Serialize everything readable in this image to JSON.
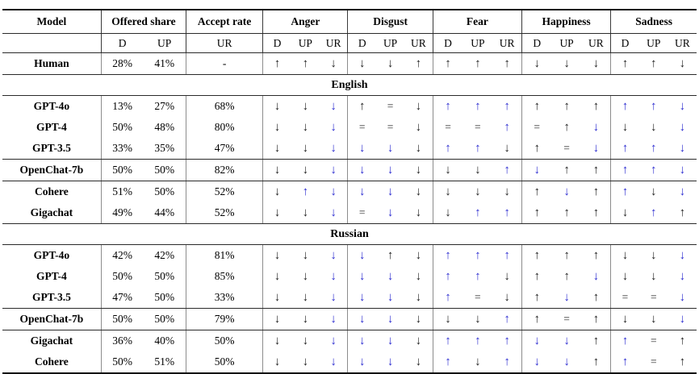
{
  "colors": {
    "arrow_blue": "#2b2bd0",
    "arrow_black": "#1c1c1c"
  },
  "table": {
    "group_headers": [
      {
        "label": "Model",
        "span": 1
      },
      {
        "label": "Offered share",
        "span": 2
      },
      {
        "label": "Accept rate",
        "span": 1
      },
      {
        "label": "Anger",
        "span": 3
      },
      {
        "label": "Disgust",
        "span": 3
      },
      {
        "label": "Fear",
        "span": 3
      },
      {
        "label": "Happiness",
        "span": 3
      },
      {
        "label": "Sadness",
        "span": 3
      }
    ],
    "sub_headers": [
      "",
      "D",
      "UP",
      "UR",
      "D",
      "UP",
      "UR",
      "D",
      "UP",
      "UR",
      "D",
      "UP",
      "UR",
      "D",
      "UP",
      "UR",
      "D",
      "UP",
      "UR"
    ],
    "human_row": {
      "model": "Human",
      "offered": [
        "28%",
        "41%"
      ],
      "accept": "-",
      "arrows": [
        "↑k",
        "↑k",
        "↓k",
        "↓k",
        "↓k",
        "↑k",
        "↑k",
        "↑k",
        "↑k",
        "↓k",
        "↓k",
        "↓k",
        "↑k",
        "↑k",
        "↓k"
      ]
    },
    "sections": [
      {
        "title": "English",
        "groups": [
          [
            {
              "model": "GPT-4o",
              "offered": [
                "13%",
                "27%"
              ],
              "accept": "68%",
              "arrows": [
                "↓k",
                "↓k",
                "↓b",
                "↑k",
                "=k",
                "↓k",
                "↑b",
                "↑b",
                "↑b",
                "↑k",
                "↑k",
                "↑k",
                "↑b",
                "↑b",
                "↓b"
              ]
            },
            {
              "model": "GPT-4",
              "offered": [
                "50%",
                "48%"
              ],
              "accept": "80%",
              "arrows": [
                "↓k",
                "↓k",
                "↓b",
                "=k",
                "=k",
                "↓k",
                "=k",
                "=k",
                "↑b",
                "=k",
                "↑k",
                "↓b",
                "↓k",
                "↓k",
                "↓b"
              ]
            },
            {
              "model": "GPT-3.5",
              "offered": [
                "33%",
                "35%"
              ],
              "accept": "47%",
              "arrows": [
                "↓k",
                "↓k",
                "↓b",
                "↓b",
                "↓b",
                "↓k",
                "↑b",
                "↑b",
                "↓k",
                "↑k",
                "=k",
                "↓b",
                "↑b",
                "↑b",
                "↓b"
              ]
            }
          ],
          [
            {
              "model": "OpenChat-7b",
              "offered": [
                "50%",
                "50%"
              ],
              "accept": "82%",
              "arrows": [
                "↓k",
                "↓k",
                "↓b",
                "↓b",
                "↓b",
                "↓k",
                "↓k",
                "↓k",
                "↑b",
                "↓b",
                "↑k",
                "↑k",
                "↑b",
                "↑b",
                "↓b"
              ]
            }
          ],
          [
            {
              "model": "Cohere",
              "offered": [
                "51%",
                "50%"
              ],
              "accept": "52%",
              "arrows": [
                "↓k",
                "↑b",
                "↓b",
                "↓b",
                "↓b",
                "↓k",
                "↓k",
                "↓k",
                "↓k",
                "↑k",
                "↓b",
                "↑k",
                "↑b",
                "↓k",
                "↓b"
              ]
            },
            {
              "model": "Gigachat",
              "offered": [
                "49%",
                "44%"
              ],
              "accept": "52%",
              "arrows": [
                "↓k",
                "↓k",
                "↓b",
                "=k",
                "↓b",
                "↓k",
                "↓k",
                "↑b",
                "↑b",
                "↑k",
                "↑k",
                "↑k",
                "↓k",
                "↑b",
                "↑k"
              ]
            }
          ]
        ]
      },
      {
        "title": "Russian",
        "groups": [
          [
            {
              "model": "GPT-4o",
              "offered": [
                "42%",
                "42%"
              ],
              "accept": "81%",
              "arrows": [
                "↓k",
                "↓k",
                "↓b",
                "↓b",
                "↑k",
                "↓k",
                "↑b",
                "↑b",
                "↑b",
                "↑k",
                "↑k",
                "↑k",
                "↓k",
                "↓k",
                "↓b"
              ]
            },
            {
              "model": "GPT-4",
              "offered": [
                "50%",
                "50%"
              ],
              "accept": "85%",
              "arrows": [
                "↓k",
                "↓k",
                "↓b",
                "↓b",
                "↓b",
                "↓k",
                "↑b",
                "↑b",
                "↓k",
                "↑k",
                "↑k",
                "↓b",
                "↓k",
                "↓k",
                "↓b"
              ]
            },
            {
              "model": "GPT-3.5",
              "offered": [
                "47%",
                "50%"
              ],
              "accept": "33%",
              "arrows": [
                "↓k",
                "↓k",
                "↓b",
                "↓b",
                "↓b",
                "↓k",
                "↑b",
                "=k",
                "↓k",
                "↑k",
                "↓b",
                "↑k",
                "=k",
                "=k",
                "↓b"
              ]
            }
          ],
          [
            {
              "model": "OpenChat-7b",
              "offered": [
                "50%",
                "50%"
              ],
              "accept": "79%",
              "arrows": [
                "↓k",
                "↓k",
                "↓b",
                "↓b",
                "↓b",
                "↓k",
                "↓k",
                "↓k",
                "↑b",
                "↑k",
                "=k",
                "↑k",
                "↓k",
                "↓k",
                "↓b"
              ]
            }
          ],
          [
            {
              "model": "Gigachat",
              "offered": [
                "36%",
                "40%"
              ],
              "accept": "50%",
              "arrows": [
                "↓k",
                "↓k",
                "↓b",
                "↓b",
                "↓b",
                "↓k",
                "↑b",
                "↑b",
                "↑b",
                "↓b",
                "↓b",
                "↑k",
                "↑b",
                "=k",
                "↑k"
              ]
            },
            {
              "model": "Cohere",
              "offered": [
                "50%",
                "51%"
              ],
              "accept": "50%",
              "arrows": [
                "↓k",
                "↓k",
                "↓b",
                "↓b",
                "↓b",
                "↓k",
                "↑b",
                "↓k",
                "↑b",
                "↓b",
                "↓b",
                "↑k",
                "↑b",
                "=k",
                "↑k"
              ]
            }
          ]
        ]
      }
    ]
  }
}
